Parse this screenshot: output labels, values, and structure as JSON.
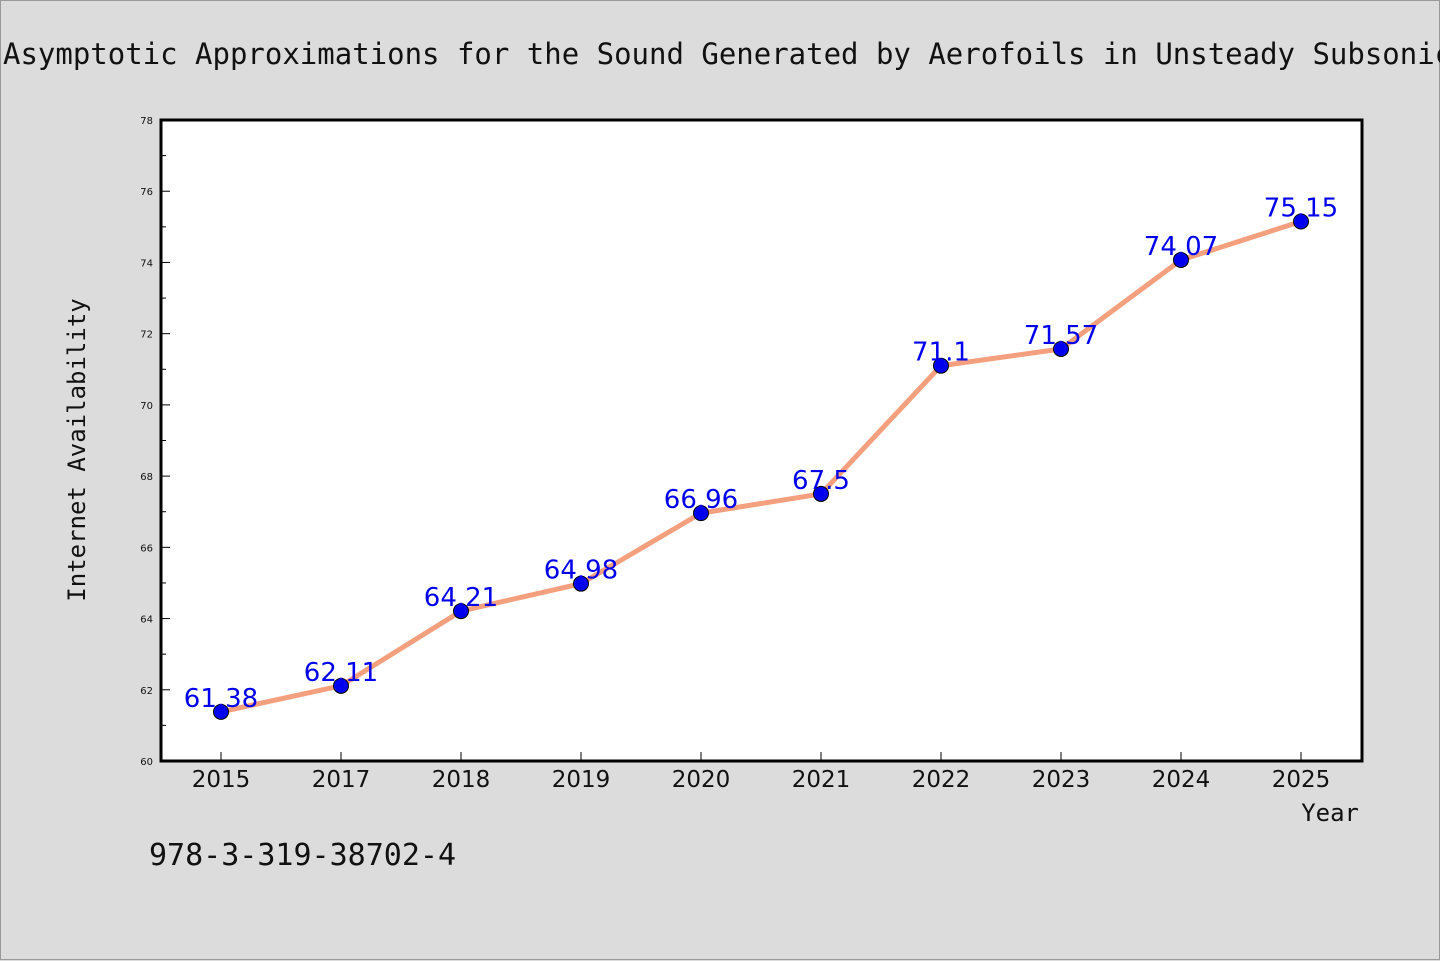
{
  "chart_data": {
    "type": "line",
    "title": "Asymptotic Approximations for the Sound Generated by Aerofoils in Unsteady Subsonic Flows",
    "xlabel": "Year",
    "ylabel": "Internet Availability",
    "categories": [
      "2015",
      "2017",
      "2018",
      "2019",
      "2020",
      "2021",
      "2022",
      "2023",
      "2024",
      "2025"
    ],
    "series": [
      {
        "values": [
          61.38,
          62.11,
          64.21,
          64.98,
          66.96,
          67.5,
          71.1,
          71.57,
          74.07,
          75.15
        ]
      }
    ],
    "data_labels": [
      "61.38",
      "62.11",
      "64.21",
      "64.98",
      "66.96",
      "67.5",
      "71.1",
      "71.57",
      "74.07",
      "75.15"
    ],
    "ylim": [
      60,
      78
    ],
    "yticks": [
      "60",
      "62",
      "64",
      "66",
      "68",
      "70",
      "72",
      "74",
      "76",
      "78"
    ],
    "grid": false,
    "line_color": "#f4a07e",
    "marker_color": "#0000ee",
    "label_color": "#0000ee",
    "annotation": "978-3-319-38702-4"
  }
}
